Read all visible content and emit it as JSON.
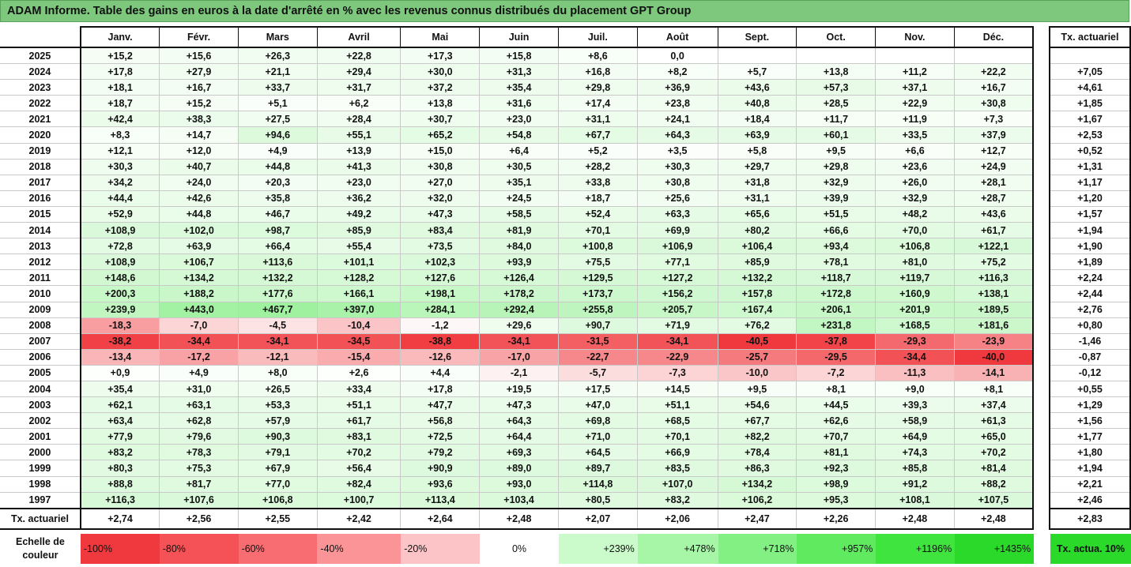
{
  "title": "ADAM Informe. Table des gains en euros à la date d'arrêté en % avec les revenus connus distribués du placement GPT Group",
  "months": [
    "Janv.",
    "Févr.",
    "Mars",
    "Avril",
    "Mai",
    "Juin",
    "Juil.",
    "Août",
    "Sept.",
    "Oct.",
    "Nov.",
    "Déc."
  ],
  "rate_header": "Tx. actuariel",
  "rows": [
    {
      "year": "2025",
      "values": [
        "+15,2",
        "+15,6",
        "+26,3",
        "+22,8",
        "+17,3",
        "+15,8",
        "+8,6",
        "0,0",
        "",
        "",
        "",
        ""
      ],
      "rate": ""
    },
    {
      "year": "2024",
      "values": [
        "+17,8",
        "+27,9",
        "+21,1",
        "+29,4",
        "+30,0",
        "+31,3",
        "+16,8",
        "+8,2",
        "+5,7",
        "+13,8",
        "+11,2",
        "+22,2"
      ],
      "rate": "+7,05"
    },
    {
      "year": "2023",
      "values": [
        "+18,1",
        "+16,7",
        "+33,7",
        "+31,7",
        "+37,2",
        "+35,4",
        "+29,8",
        "+36,9",
        "+43,6",
        "+57,3",
        "+37,1",
        "+16,7"
      ],
      "rate": "+4,61"
    },
    {
      "year": "2022",
      "values": [
        "+18,7",
        "+15,2",
        "+5,1",
        "+6,2",
        "+13,8",
        "+31,6",
        "+17,4",
        "+23,8",
        "+40,8",
        "+28,5",
        "+22,9",
        "+30,8"
      ],
      "rate": "+1,85"
    },
    {
      "year": "2021",
      "values": [
        "+42,4",
        "+38,3",
        "+27,5",
        "+28,4",
        "+30,7",
        "+23,0",
        "+31,1",
        "+24,1",
        "+18,4",
        "+11,7",
        "+11,9",
        "+7,3"
      ],
      "rate": "+1,67"
    },
    {
      "year": "2020",
      "values": [
        "+8,3",
        "+14,7",
        "+94,6",
        "+55,1",
        "+65,2",
        "+54,8",
        "+67,7",
        "+64,3",
        "+63,9",
        "+60,1",
        "+33,5",
        "+37,9"
      ],
      "rate": "+2,53"
    },
    {
      "year": "2019",
      "values": [
        "+12,1",
        "+12,0",
        "+4,9",
        "+13,9",
        "+15,0",
        "+6,4",
        "+5,2",
        "+3,5",
        "+5,8",
        "+9,5",
        "+6,6",
        "+12,7"
      ],
      "rate": "+0,52"
    },
    {
      "year": "2018",
      "values": [
        "+30,3",
        "+40,7",
        "+44,8",
        "+41,3",
        "+30,8",
        "+30,5",
        "+28,2",
        "+30,3",
        "+29,7",
        "+29,8",
        "+23,6",
        "+24,9"
      ],
      "rate": "+1,31"
    },
    {
      "year": "2017",
      "values": [
        "+34,2",
        "+24,0",
        "+20,3",
        "+23,0",
        "+27,0",
        "+35,1",
        "+33,8",
        "+30,8",
        "+31,8",
        "+32,9",
        "+26,0",
        "+28,1"
      ],
      "rate": "+1,17"
    },
    {
      "year": "2016",
      "values": [
        "+44,4",
        "+42,6",
        "+35,8",
        "+36,2",
        "+32,0",
        "+24,5",
        "+18,7",
        "+25,6",
        "+31,1",
        "+39,9",
        "+32,9",
        "+28,7"
      ],
      "rate": "+1,20"
    },
    {
      "year": "2015",
      "values": [
        "+52,9",
        "+44,8",
        "+46,7",
        "+49,2",
        "+47,3",
        "+58,5",
        "+52,4",
        "+63,3",
        "+65,6",
        "+51,5",
        "+48,2",
        "+43,6"
      ],
      "rate": "+1,57"
    },
    {
      "year": "2014",
      "values": [
        "+108,9",
        "+102,0",
        "+98,7",
        "+85,9",
        "+83,4",
        "+81,9",
        "+70,1",
        "+69,9",
        "+80,2",
        "+66,6",
        "+70,0",
        "+61,7"
      ],
      "rate": "+1,94"
    },
    {
      "year": "2013",
      "values": [
        "+72,8",
        "+63,9",
        "+66,4",
        "+55,4",
        "+73,5",
        "+84,0",
        "+100,8",
        "+106,9",
        "+106,4",
        "+93,4",
        "+106,8",
        "+122,1"
      ],
      "rate": "+1,90"
    },
    {
      "year": "2012",
      "values": [
        "+108,9",
        "+106,7",
        "+113,6",
        "+101,1",
        "+102,3",
        "+93,9",
        "+75,5",
        "+77,1",
        "+85,9",
        "+78,1",
        "+81,0",
        "+75,2"
      ],
      "rate": "+1,89"
    },
    {
      "year": "2011",
      "values": [
        "+148,6",
        "+134,2",
        "+132,2",
        "+128,2",
        "+127,6",
        "+126,4",
        "+129,5",
        "+127,2",
        "+132,2",
        "+118,7",
        "+119,7",
        "+116,3"
      ],
      "rate": "+2,24"
    },
    {
      "year": "2010",
      "values": [
        "+200,3",
        "+188,2",
        "+177,6",
        "+166,1",
        "+198,1",
        "+178,2",
        "+173,7",
        "+156,2",
        "+157,8",
        "+172,8",
        "+160,9",
        "+138,1"
      ],
      "rate": "+2,44"
    },
    {
      "year": "2009",
      "values": [
        "+239,9",
        "+443,0",
        "+467,7",
        "+397,0",
        "+284,1",
        "+292,4",
        "+255,8",
        "+205,7",
        "+167,4",
        "+206,1",
        "+201,9",
        "+189,5"
      ],
      "rate": "+2,76"
    },
    {
      "year": "2008",
      "values": [
        "-18,3",
        "-7,0",
        "-4,5",
        "-10,4",
        "-1,2",
        "+29,6",
        "+90,7",
        "+71,9",
        "+76,2",
        "+231,8",
        "+168,5",
        "+181,6"
      ],
      "rate": "+0,80"
    },
    {
      "year": "2007",
      "values": [
        "-38,2",
        "-34,4",
        "-34,1",
        "-34,5",
        "-38,8",
        "-34,1",
        "-31,5",
        "-34,1",
        "-40,5",
        "-37,8",
        "-29,3",
        "-23,9"
      ],
      "rate": "-1,46"
    },
    {
      "year": "2006",
      "values": [
        "-13,4",
        "-17,2",
        "-12,1",
        "-15,4",
        "-12,6",
        "-17,0",
        "-22,7",
        "-22,9",
        "-25,7",
        "-29,5",
        "-34,4",
        "-40,0"
      ],
      "rate": "-0,87"
    },
    {
      "year": "2005",
      "values": [
        "+0,9",
        "+4,9",
        "+8,0",
        "+2,6",
        "+4,4",
        "-2,1",
        "-5,7",
        "-7,3",
        "-10,0",
        "-7,2",
        "-11,3",
        "-14,1"
      ],
      "rate": "-0,12"
    },
    {
      "year": "2004",
      "values": [
        "+35,4",
        "+31,0",
        "+26,5",
        "+33,4",
        "+17,8",
        "+19,5",
        "+17,5",
        "+14,5",
        "+9,5",
        "+8,1",
        "+9,0",
        "+8,1"
      ],
      "rate": "+0,55"
    },
    {
      "year": "2003",
      "values": [
        "+62,1",
        "+63,1",
        "+53,3",
        "+51,1",
        "+47,7",
        "+47,3",
        "+47,0",
        "+51,1",
        "+54,6",
        "+44,5",
        "+39,3",
        "+37,4"
      ],
      "rate": "+1,29"
    },
    {
      "year": "2002",
      "values": [
        "+63,4",
        "+62,8",
        "+57,9",
        "+61,7",
        "+56,8",
        "+64,3",
        "+69,8",
        "+68,5",
        "+67,7",
        "+62,6",
        "+58,9",
        "+61,3"
      ],
      "rate": "+1,56"
    },
    {
      "year": "2001",
      "values": [
        "+77,9",
        "+79,6",
        "+90,3",
        "+83,1",
        "+72,5",
        "+64,4",
        "+71,0",
        "+70,1",
        "+82,2",
        "+70,7",
        "+64,9",
        "+65,0"
      ],
      "rate": "+1,77"
    },
    {
      "year": "2000",
      "values": [
        "+83,2",
        "+78,3",
        "+79,1",
        "+70,2",
        "+79,2",
        "+69,3",
        "+64,5",
        "+66,9",
        "+78,4",
        "+81,1",
        "+74,3",
        "+70,2"
      ],
      "rate": "+1,80"
    },
    {
      "year": "1999",
      "values": [
        "+80,3",
        "+75,3",
        "+67,9",
        "+56,4",
        "+90,9",
        "+89,0",
        "+89,7",
        "+83,5",
        "+86,3",
        "+92,3",
        "+85,8",
        "+81,4"
      ],
      "rate": "+1,94"
    },
    {
      "year": "1998",
      "values": [
        "+88,8",
        "+81,7",
        "+77,0",
        "+82,4",
        "+93,6",
        "+93,0",
        "+114,8",
        "+107,0",
        "+134,2",
        "+98,9",
        "+91,2",
        "+88,2"
      ],
      "rate": "+2,21"
    },
    {
      "year": "1997",
      "values": [
        "+116,3",
        "+107,6",
        "+106,8",
        "+100,7",
        "+113,4",
        "+103,4",
        "+80,5",
        "+83,2",
        "+106,2",
        "+95,3",
        "+108,1",
        "+107,5"
      ],
      "rate": "+2,46"
    }
  ],
  "footer": {
    "label": "Tx. actuariel",
    "values": [
      "+2,74",
      "+2,56",
      "+2,55",
      "+2,42",
      "+2,64",
      "+2,48",
      "+2,07",
      "+2,06",
      "+2,47",
      "+2,26",
      "+2,48",
      "+2,48"
    ],
    "rate": "+2,83"
  },
  "scale": {
    "label": "Echelle de couleur",
    "items": [
      {
        "label": "-100%",
        "color": "#f0393e"
      },
      {
        "label": "-80%",
        "color": "#f45257"
      },
      {
        "label": "-60%",
        "color": "#f76d71"
      },
      {
        "label": "-40%",
        "color": "#fa9497"
      },
      {
        "label": "-20%",
        "color": "#fcc4c6"
      },
      {
        "label": "0%",
        "color": "#ffffff"
      },
      {
        "label": "+239%",
        "color": "#cbfbcb"
      },
      {
        "label": "+478%",
        "color": "#a7f6a7"
      },
      {
        "label": "+718%",
        "color": "#82f082"
      },
      {
        "label": "+957%",
        "color": "#5fea5f"
      },
      {
        "label": "+1196%",
        "color": "#3fe43f"
      },
      {
        "label": "+1435%",
        "color": "#2ad92a"
      }
    ],
    "actua_label": "Tx. actua. 10%",
    "actua_color": "#2ad92a"
  }
}
